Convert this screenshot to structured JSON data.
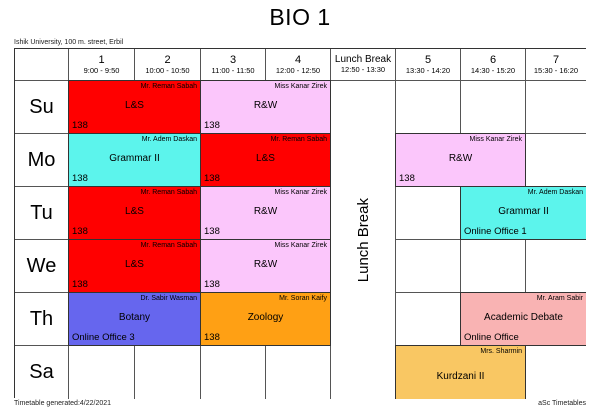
{
  "title": "BIO 1",
  "subtitle": "Ishik University, 100 m. street, Erbil",
  "footer": {
    "generated": "Timetable generated:4/22/2021",
    "brand": "aSc Timetables"
  },
  "grid": {
    "lunch_column_label": "Lunch Break",
    "periods": [
      {
        "label": "1",
        "time": "9:00 - 9:50",
        "is_lunch": false
      },
      {
        "label": "2",
        "time": "10:00 - 10:50",
        "is_lunch": false
      },
      {
        "label": "3",
        "time": "11:00 - 11:50",
        "is_lunch": false
      },
      {
        "label": "4",
        "time": "12:00 - 12:50",
        "is_lunch": false
      },
      {
        "label": "Lunch Break",
        "time": "12:50 - 13:30",
        "is_lunch": true
      },
      {
        "label": "5",
        "time": "13:30 - 14:20",
        "is_lunch": false
      },
      {
        "label": "6",
        "time": "14:30 - 15:20",
        "is_lunch": false
      },
      {
        "label": "7",
        "time": "15:30 - 16:20",
        "is_lunch": false
      }
    ],
    "days": [
      "Su",
      "Mo",
      "Tu",
      "We",
      "Th",
      "Sa"
    ]
  },
  "colors": {
    "red": "#FF0000",
    "pink": "#FBC6FB",
    "cyan": "#5CF4EC",
    "blue": "#6666EE",
    "orange": "#FFA014",
    "salmon": "#F9B3B3",
    "amber": "#F9C763"
  },
  "lessons": [
    {
      "day": "Su",
      "period": 1,
      "span": 2,
      "teacher": "Mr. Reman Sabah",
      "subject": "L&S",
      "room": "138",
      "color": "red"
    },
    {
      "day": "Su",
      "period": 3,
      "span": 2,
      "teacher": "Miss Kanar Zirek",
      "subject": "R&W",
      "room": "138",
      "color": "pink"
    },
    {
      "day": "Mo",
      "period": 1,
      "span": 2,
      "teacher": "Mr. Adem Daskan",
      "subject": "Grammar II",
      "room": "138",
      "color": "cyan"
    },
    {
      "day": "Mo",
      "period": 3,
      "span": 2,
      "teacher": "Mr. Reman Sabah",
      "subject": "L&S",
      "room": "138",
      "color": "red"
    },
    {
      "day": "Mo",
      "period": 5,
      "span": 2,
      "teacher": "Miss Kanar Zirek",
      "subject": "R&W",
      "room": "138",
      "color": "pink"
    },
    {
      "day": "Tu",
      "period": 1,
      "span": 2,
      "teacher": "Mr. Reman Sabah",
      "subject": "L&S",
      "room": "138",
      "color": "red"
    },
    {
      "day": "Tu",
      "period": 3,
      "span": 2,
      "teacher": "Miss Kanar Zirek",
      "subject": "R&W",
      "room": "138",
      "color": "pink"
    },
    {
      "day": "Tu",
      "period": 6,
      "span": 2,
      "teacher": "Mr. Adem Daskan",
      "subject": "Grammar II",
      "room": "Online Office 1",
      "color": "cyan"
    },
    {
      "day": "We",
      "period": 1,
      "span": 2,
      "teacher": "Mr. Reman Sabah",
      "subject": "L&S",
      "room": "138",
      "color": "red"
    },
    {
      "day": "We",
      "period": 3,
      "span": 2,
      "teacher": "Miss Kanar Zirek",
      "subject": "R&W",
      "room": "138",
      "color": "pink"
    },
    {
      "day": "Th",
      "period": 1,
      "span": 2,
      "teacher": "Dr. Sabir Wasman",
      "subject": "Botany",
      "room": "Online Office 3",
      "color": "blue"
    },
    {
      "day": "Th",
      "period": 3,
      "span": 2,
      "teacher": "Mr. Soran Kaify",
      "subject": "Zoology",
      "room": "138",
      "color": "orange"
    },
    {
      "day": "Th",
      "period": 6,
      "span": 2,
      "teacher": "Mr. Aram Sabir",
      "subject": "Academic Debate",
      "room": "Online Office",
      "color": "salmon"
    },
    {
      "day": "Sa",
      "period": 5,
      "span": 2,
      "teacher": "Mrs. Sharmin",
      "subject": "Kurdzani II",
      "room": "",
      "color": "amber"
    }
  ]
}
